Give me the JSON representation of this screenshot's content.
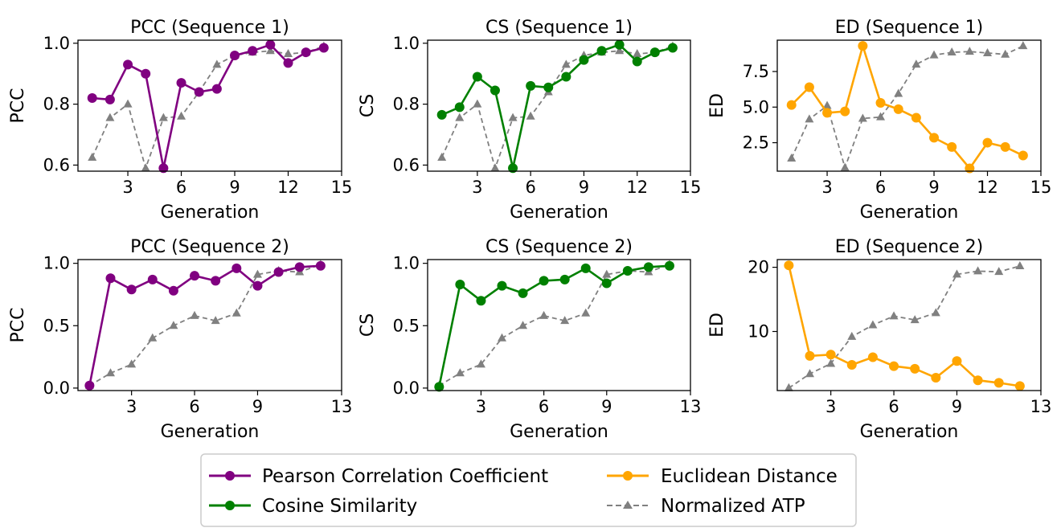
{
  "colors": {
    "pcc": "#800080",
    "cs": "#008000",
    "ed": "#FFA500",
    "atp": "#808080"
  },
  "legend": {
    "placement": "bottom-center",
    "entries": [
      {
        "label": "Pearson Correlation Coefficient",
        "color": "#800080",
        "style": "solid-circle"
      },
      {
        "label": "Cosine Similarity",
        "color": "#008000",
        "style": "solid-circle"
      },
      {
        "label": "Euclidean Distance",
        "color": "#FFA500",
        "style": "solid-circle"
      },
      {
        "label": "Normalized ATP",
        "color": "#808080",
        "style": "dashed-triangle"
      }
    ]
  },
  "chart_data": [
    {
      "type": "line",
      "title": "PCC (Sequence 1)",
      "xlabel": "Generation",
      "ylabel": "PCC",
      "xlim": [
        0.2,
        15
      ],
      "ylim": [
        0.58,
        1.01
      ],
      "xticks": [
        3,
        6,
        9,
        12,
        15
      ],
      "yticks": [
        0.6,
        0.8,
        1.0
      ],
      "ytick_labels": [
        "0.6",
        "0.8",
        "1.0"
      ],
      "grid": false,
      "x": [
        1,
        2,
        3,
        4,
        5,
        6,
        7,
        8,
        9,
        10,
        11,
        12,
        13,
        14
      ],
      "series": [
        {
          "name": "Pearson Correlation Coefficient",
          "color": "#800080",
          "style": "solid-circle",
          "values": [
            0.82,
            0.815,
            0.93,
            0.9,
            0.59,
            0.87,
            0.84,
            0.85,
            0.96,
            0.975,
            0.995,
            0.935,
            0.97,
            0.985
          ]
        },
        {
          "name": "Normalized ATP",
          "color": "#808080",
          "style": "dashed-triangle",
          "values": [
            0.625,
            0.755,
            0.8,
            0.59,
            0.755,
            0.76,
            0.84,
            0.93,
            0.96,
            0.97,
            0.975,
            0.965,
            0.97,
            0.99
          ]
        }
      ]
    },
    {
      "type": "line",
      "title": "CS (Sequence 1)",
      "xlabel": "Generation",
      "ylabel": "CS",
      "xlim": [
        0.2,
        15
      ],
      "ylim": [
        0.58,
        1.01
      ],
      "xticks": [
        3,
        6,
        9,
        12,
        15
      ],
      "yticks": [
        0.6,
        0.8,
        1.0
      ],
      "ytick_labels": [
        "0.6",
        "0.8",
        "1.0"
      ],
      "grid": false,
      "x": [
        1,
        2,
        3,
        4,
        5,
        6,
        7,
        8,
        9,
        10,
        11,
        12,
        13,
        14
      ],
      "series": [
        {
          "name": "Cosine Similarity",
          "color": "#008000",
          "style": "solid-circle",
          "values": [
            0.765,
            0.79,
            0.89,
            0.845,
            0.59,
            0.86,
            0.855,
            0.89,
            0.945,
            0.975,
            0.995,
            0.94,
            0.97,
            0.985
          ]
        },
        {
          "name": "Normalized ATP",
          "color": "#808080",
          "style": "dashed-triangle",
          "values": [
            0.625,
            0.755,
            0.8,
            0.59,
            0.755,
            0.76,
            0.84,
            0.93,
            0.96,
            0.97,
            0.975,
            0.965,
            0.97,
            0.99
          ]
        }
      ]
    },
    {
      "type": "line",
      "title": "ED (Sequence 1)",
      "xlabel": "Generation",
      "ylabel": "ED",
      "xlim": [
        0.2,
        15
      ],
      "ylim": [
        0.5,
        9.7
      ],
      "xticks": [
        3,
        6,
        9,
        12,
        15
      ],
      "yticks": [
        2.5,
        5.0,
        7.5
      ],
      "ytick_labels": [
        "2.5",
        "5.0",
        "7.5"
      ],
      "grid": false,
      "x": [
        1,
        2,
        3,
        4,
        5,
        6,
        7,
        8,
        9,
        10,
        11,
        12,
        13,
        14
      ],
      "series": [
        {
          "name": "Euclidean Distance",
          "color": "#FFA500",
          "style": "solid-circle",
          "values": [
            5.15,
            6.4,
            4.6,
            4.7,
            9.3,
            5.3,
            4.85,
            4.25,
            2.85,
            2.2,
            0.7,
            2.5,
            2.2,
            1.6
          ]
        },
        {
          "name": "Normalized ATP",
          "color": "#808080",
          "style": "dashed-triangle",
          "values": [
            1.4,
            4.15,
            5.1,
            0.75,
            4.2,
            4.3,
            5.95,
            8.0,
            8.65,
            8.85,
            8.9,
            8.8,
            8.7,
            9.3
          ]
        }
      ]
    },
    {
      "type": "line",
      "title": "PCC (Sequence 2)",
      "xlabel": "Generation",
      "ylabel": "PCC",
      "xlim": [
        0.45,
        13
      ],
      "ylim": [
        -0.02,
        1.03
      ],
      "xticks": [
        3,
        6,
        9,
        13
      ],
      "yticks": [
        0.0,
        0.5,
        1.0
      ],
      "ytick_labels": [
        "0.0",
        "0.5",
        "1.0"
      ],
      "grid": false,
      "x": [
        1,
        2,
        3,
        4,
        5,
        6,
        7,
        8,
        9,
        10,
        11,
        12
      ],
      "series": [
        {
          "name": "Pearson Correlation Coefficient",
          "color": "#800080",
          "style": "solid-circle",
          "values": [
            0.02,
            0.88,
            0.79,
            0.87,
            0.78,
            0.9,
            0.86,
            0.96,
            0.82,
            0.93,
            0.97,
            0.98
          ]
        },
        {
          "name": "Normalized ATP",
          "color": "#808080",
          "style": "dashed-triangle",
          "values": [
            0.02,
            0.12,
            0.19,
            0.4,
            0.5,
            0.58,
            0.54,
            0.6,
            0.91,
            0.94,
            0.93,
            0.99
          ]
        }
      ]
    },
    {
      "type": "line",
      "title": "CS (Sequence 2)",
      "xlabel": "Generation",
      "ylabel": "CS",
      "xlim": [
        0.45,
        13
      ],
      "ylim": [
        -0.02,
        1.03
      ],
      "xticks": [
        3,
        6,
        9,
        13
      ],
      "yticks": [
        0.0,
        0.5,
        1.0
      ],
      "ytick_labels": [
        "0.0",
        "0.5",
        "1.0"
      ],
      "grid": false,
      "x": [
        1,
        2,
        3,
        4,
        5,
        6,
        7,
        8,
        9,
        10,
        11,
        12
      ],
      "series": [
        {
          "name": "Cosine Similarity",
          "color": "#008000",
          "style": "solid-circle",
          "values": [
            0.01,
            0.83,
            0.7,
            0.82,
            0.76,
            0.86,
            0.87,
            0.96,
            0.84,
            0.94,
            0.97,
            0.98
          ]
        },
        {
          "name": "Normalized ATP",
          "color": "#808080",
          "style": "dashed-triangle",
          "values": [
            0.02,
            0.12,
            0.19,
            0.4,
            0.5,
            0.58,
            0.54,
            0.6,
            0.91,
            0.94,
            0.93,
            0.99
          ]
        }
      ]
    },
    {
      "type": "line",
      "title": "ED (Sequence 2)",
      "xlabel": "Generation",
      "ylabel": "ED",
      "xlim": [
        0.45,
        13
      ],
      "ylim": [
        0.8,
        21.2
      ],
      "xticks": [
        3,
        6,
        9,
        13
      ],
      "yticks": [
        10,
        20
      ],
      "ytick_labels": [
        "10",
        "20"
      ],
      "grid": false,
      "x": [
        1,
        2,
        3,
        4,
        5,
        6,
        7,
        8,
        9,
        10,
        11,
        12
      ],
      "series": [
        {
          "name": "Euclidean Distance",
          "color": "#FFA500",
          "style": "solid-circle",
          "values": [
            20.3,
            6.2,
            6.4,
            4.8,
            6.0,
            4.6,
            4.2,
            2.8,
            5.4,
            2.4,
            2.0,
            1.5
          ]
        },
        {
          "name": "Normalized ATP",
          "color": "#808080",
          "style": "dashed-triangle",
          "values": [
            1.2,
            3.4,
            5.0,
            9.2,
            11.0,
            12.4,
            11.8,
            12.9,
            18.9,
            19.4,
            19.3,
            20.2
          ]
        }
      ]
    }
  ]
}
